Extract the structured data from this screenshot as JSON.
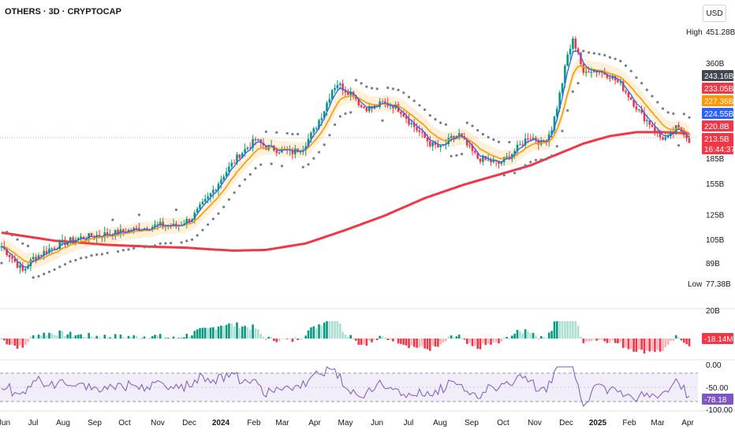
{
  "header": {
    "title": "OTHERS · 3D · CRYPTOCAP",
    "currency": "USD"
  },
  "chart_data": {
    "type": "candlestick",
    "yscale": "log",
    "price_ticks": [
      "360B",
      "185B",
      "155B",
      "125B",
      "105B",
      "89B"
    ],
    "price_tick_values": [
      360,
      185,
      155,
      125,
      105,
      89
    ],
    "high": {
      "label": "High",
      "value": "451.28B",
      "num": 451.28
    },
    "low": {
      "label": "Low",
      "value": "77.38B",
      "num": 77.38
    },
    "badges": [
      {
        "text": "243.16B",
        "num": 243.16,
        "color": "#434651"
      },
      {
        "text": "233.05B",
        "num": 233.05,
        "color": "#f23645"
      },
      {
        "text": "227.36B",
        "num": 227.36,
        "color": "#ff9800"
      },
      {
        "text": "224.55B",
        "num": 224.55,
        "color": "#2962ff"
      },
      {
        "text": "220.8B",
        "num": 220.8,
        "color": "#f23645"
      },
      {
        "text": "213.5B",
        "num": 213.5,
        "color": "#f23645"
      },
      {
        "text": "16:44:37",
        "num": 0,
        "color": "#f23645"
      }
    ],
    "x_labels": [
      "Jun",
      "Jul",
      "Aug",
      "Sep",
      "Oct",
      "Nov",
      "Dec",
      "2024",
      "Feb",
      "Mar",
      "Apr",
      "May",
      "Jun",
      "Jul",
      "Aug",
      "Sep",
      "Oct",
      "Nov",
      "Dec",
      "2025",
      "Feb",
      "Mar",
      "Apr"
    ],
    "macd": {
      "tick": "20B",
      "value": "-18.14M"
    },
    "rsi": {
      "ticks": [
        "0.00",
        "-50.00",
        "-100.00"
      ],
      "value": "-78.18"
    },
    "series_anchors": {
      "close": [
        [
          0,
          100
        ],
        [
          4,
          92
        ],
        [
          8,
          84
        ],
        [
          12,
          92
        ],
        [
          18,
          98
        ],
        [
          24,
          103
        ],
        [
          30,
          106
        ],
        [
          36,
          108
        ],
        [
          44,
          110
        ],
        [
          52,
          113
        ],
        [
          60,
          116
        ],
        [
          66,
          115
        ],
        [
          72,
          122
        ],
        [
          78,
          140
        ],
        [
          84,
          165
        ],
        [
          90,
          190
        ],
        [
          96,
          210
        ],
        [
          100,
          200
        ],
        [
          105,
          196
        ],
        [
          110,
          193
        ],
        [
          114,
          200
        ],
        [
          118,
          224
        ],
        [
          122,
          260
        ],
        [
          125,
          300
        ],
        [
          127,
          312
        ],
        [
          130,
          298
        ],
        [
          133,
          290
        ],
        [
          136,
          265
        ],
        [
          140,
          262
        ],
        [
          144,
          272
        ],
        [
          148,
          268
        ],
        [
          151,
          258
        ],
        [
          154,
          240
        ],
        [
          158,
          222
        ],
        [
          162,
          205
        ],
        [
          166,
          198
        ],
        [
          170,
          212
        ],
        [
          173,
          218
        ],
        [
          176,
          202
        ],
        [
          180,
          185
        ],
        [
          184,
          182
        ],
        [
          188,
          178
        ],
        [
          192,
          188
        ],
        [
          196,
          202
        ],
        [
          199,
          215
        ],
        [
          202,
          212
        ],
        [
          204,
          205
        ],
        [
          206,
          212
        ],
        [
          208,
          228
        ],
        [
          210,
          265
        ],
        [
          212,
          315
        ],
        [
          214,
          380
        ],
        [
          216,
          420
        ],
        [
          218,
          390
        ],
        [
          220,
          330
        ],
        [
          222,
          345
        ],
        [
          226,
          340
        ],
        [
          230,
          330
        ],
        [
          234,
          310
        ],
        [
          238,
          280
        ],
        [
          242,
          250
        ],
        [
          246,
          232
        ],
        [
          249,
          214
        ],
        [
          252,
          212
        ],
        [
          255,
          228
        ],
        [
          258,
          222
        ],
        [
          260,
          210
        ]
      ],
      "ema_slow": [
        [
          0,
          110
        ],
        [
          20,
          104
        ],
        [
          40,
          101
        ],
        [
          60,
          99.5
        ],
        [
          70,
          99
        ],
        [
          78,
          98
        ],
        [
          88,
          97
        ],
        [
          100,
          97.5
        ],
        [
          115,
          102
        ],
        [
          130,
          112
        ],
        [
          145,
          124
        ],
        [
          160,
          140
        ],
        [
          175,
          154
        ],
        [
          188,
          165
        ],
        [
          200,
          176
        ],
        [
          210,
          190
        ],
        [
          220,
          205
        ],
        [
          230,
          216
        ],
        [
          240,
          222
        ],
        [
          250,
          222
        ],
        [
          260,
          220
        ]
      ]
    }
  }
}
